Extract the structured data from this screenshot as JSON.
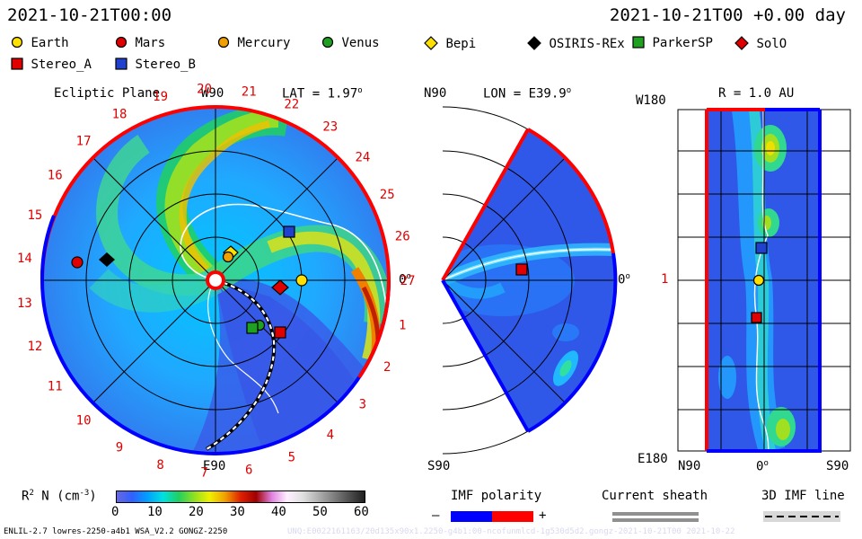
{
  "header": {
    "datetime": "2021-10-21T00:00",
    "offset": "2021-10-21T00 +0.00 day"
  },
  "legend": {
    "row1": [
      {
        "label": "Earth",
        "symbol": "circle",
        "color": "#ffe000"
      },
      {
        "label": "Mars",
        "symbol": "circle",
        "color": "#e00000"
      },
      {
        "label": "Mercury",
        "symbol": "circle",
        "color": "#f0a000"
      },
      {
        "label": "Venus",
        "symbol": "circle",
        "color": "#20a020"
      },
      {
        "label": "Bepi",
        "symbol": "diamond",
        "color": "#ffe000"
      },
      {
        "label": "OSIRIS-REx",
        "symbol": "diamond",
        "color": "#000000"
      },
      {
        "label": "ParkerSP",
        "symbol": "square",
        "color": "#20a020"
      },
      {
        "label": "SolO",
        "symbol": "diamond",
        "color": "#e00000"
      }
    ],
    "row2": [
      {
        "label": "Stereo_A",
        "symbol": "square",
        "color": "#e00000"
      },
      {
        "label": "Stereo_B",
        "symbol": "square",
        "color": "#2040d0"
      }
    ]
  },
  "ecliptic": {
    "title": "Ecliptic Plane",
    "top_label": "W90",
    "lat_label": "LAT = 1.97",
    "lat_unit": "o",
    "bottom_label": "E90",
    "right_label": "0",
    "right_unit": "o",
    "carrington_labels": [
      "20",
      "21",
      "22",
      "23",
      "24",
      "25",
      "26",
      "27",
      "1",
      "2",
      "3",
      "4",
      "5",
      "6",
      "7",
      "8",
      "9",
      "10",
      "11",
      "12",
      "13",
      "14",
      "15",
      "16",
      "17",
      "18",
      "19"
    ]
  },
  "meridional": {
    "lon_label": "LON = E39.9",
    "lon_unit": "o",
    "top_label": "N90",
    "bottom_label": "S90",
    "right_label": "0",
    "right_unit": "o"
  },
  "latlon": {
    "title": "R = 1.0 AU",
    "top_label": "W180",
    "bottom_label": "E180",
    "mid_label": "1",
    "x_labels": {
      "left": "N90",
      "center": "0",
      "center_unit": "o",
      "right": "S90"
    }
  },
  "colorbar": {
    "label": "R",
    "label_sup": "2",
    "label_rest": " N (cm",
    "label_exp": "-3",
    "label_close": ")",
    "ticks": [
      "0",
      "10",
      "20",
      "30",
      "40",
      "50",
      "60"
    ],
    "colors": [
      "#6868e0",
      "#3060ff",
      "#00a0ff",
      "#00e0e0",
      "#20d060",
      "#90e020",
      "#f0f000",
      "#f0a000",
      "#e02000",
      "#a00000",
      "#e080e0",
      "#fff0ff",
      "#e0e0e0",
      "#b0b0b0",
      "#808080",
      "#505050",
      "#202020"
    ]
  },
  "imf": {
    "title": "IMF polarity",
    "minus": "–",
    "plus": "+",
    "neg_color": "#0000ff",
    "pos_color": "#ff0000"
  },
  "current_sheath": {
    "title": "Current sheath"
  },
  "imf_line": {
    "title": "3D IMF line"
  },
  "footer": {
    "left": "ENLIL-2.7 lowres-2250-a4b1 WSA_V2.2 GONGZ-2250",
    "right": "UNQ:E0022161163/20d135x90x1.2250-g4b1:00-ncofunmlcd-1g530d5d2.gongz-2021-10-21T00  2021-10-22"
  }
}
